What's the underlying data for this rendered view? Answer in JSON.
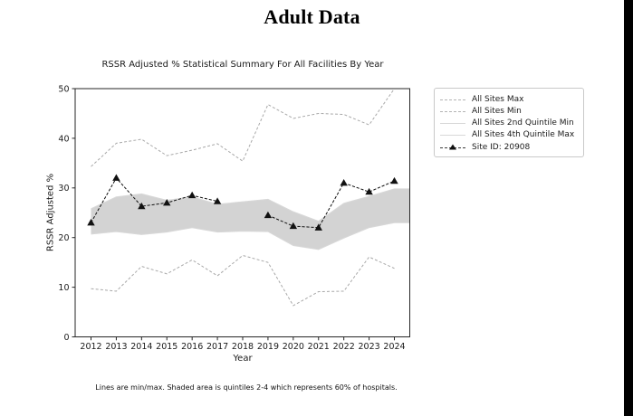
{
  "page": {
    "title": "Adult Data"
  },
  "chart": {
    "title": "RSSR Adjusted % Statistical Summary For All Facilities By Year",
    "xlabel": "Year",
    "ylabel": "RSSR Adjusted %",
    "footnote": "Lines are min/max. Shaded area is quintiles 2-4 which represents 60% of hospitals."
  },
  "legend": {
    "items": [
      {
        "label": "All Sites Max"
      },
      {
        "label": "All Sites Min"
      },
      {
        "label": "All Sites 2nd Quintile Min"
      },
      {
        "label": "All Sites 4th Quintile Max"
      },
      {
        "label": "Site ID: 20908"
      }
    ]
  },
  "colors": {
    "minmax_line": "#a8a8a8",
    "quintile_line": "#d8d8d8",
    "band_fill": "#d3d3d3",
    "site_line": "#111111",
    "axis": "#262626",
    "edge_bar": "#000000"
  },
  "chart_data": {
    "type": "line",
    "title": "RSSR Adjusted % Statistical Summary For All Facilities By Year",
    "xlabel": "Year",
    "ylabel": "RSSR Adjusted %",
    "x": [
      "2012",
      "2013",
      "2014",
      "2015",
      "2016",
      "2017",
      "2018",
      "2019",
      "2020",
      "2021",
      "2022",
      "2023",
      "2024"
    ],
    "yticks": [
      0,
      10,
      20,
      30,
      40,
      50
    ],
    "ylim": [
      0,
      50
    ],
    "grid": false,
    "legend_position": "outside upper right",
    "series": [
      {
        "id": "all-sites-max",
        "name": "All Sites Max",
        "style": "dashed",
        "color": "#a8a8a8",
        "dash": "3 2.2",
        "values": [
          34.3,
          39.0,
          39.8,
          36.5,
          37.6,
          38.9,
          35.4,
          46.8,
          44.0,
          45.0,
          44.8,
          42.7,
          50.0
        ]
      },
      {
        "id": "all-sites-min",
        "name": "All Sites Min",
        "style": "dashed",
        "color": "#a8a8a8",
        "dash": "3 2.2",
        "values": [
          9.7,
          9.2,
          14.2,
          12.7,
          15.5,
          12.3,
          16.4,
          15.0,
          6.3,
          9.1,
          9.2,
          16.1,
          13.8
        ]
      },
      {
        "id": "all-sites-2nd-quintile-min",
        "name": "All Sites 2nd Quintile Min",
        "style": "solid",
        "color": "#d8d8d8",
        "extend": true,
        "values": [
          20.7,
          21.2,
          20.6,
          21.1,
          22.0,
          21.1,
          21.3,
          21.2,
          18.4,
          17.6,
          19.9,
          22.0,
          23.0
        ]
      },
      {
        "id": "all-sites-4th-quintile-max",
        "name": "All Sites 4th Quintile Max",
        "style": "solid",
        "color": "#d8d8d8",
        "extend": true,
        "values": [
          25.8,
          28.2,
          28.8,
          27.5,
          28.2,
          26.7,
          27.2,
          27.7,
          25.2,
          23.3,
          26.9,
          28.3,
          29.8
        ]
      },
      {
        "id": "site-20908",
        "name": "Site ID: 20908",
        "style": "dashed",
        "color": "#111111",
        "dash": "3.2 1.8",
        "marker": "triangle",
        "values": [
          23.0,
          32.0,
          26.3,
          27.0,
          28.5,
          27.3,
          null,
          24.5,
          22.3,
          22.0,
          31.0,
          29.2,
          31.4
        ]
      }
    ],
    "shaded_band": {
      "lower_series": "All Sites 2nd Quintile Min",
      "upper_series": "All Sites 4th Quintile Max",
      "fill": "#d3d3d3",
      "note": "quintiles 2-4 = 60% of hospitals"
    }
  }
}
